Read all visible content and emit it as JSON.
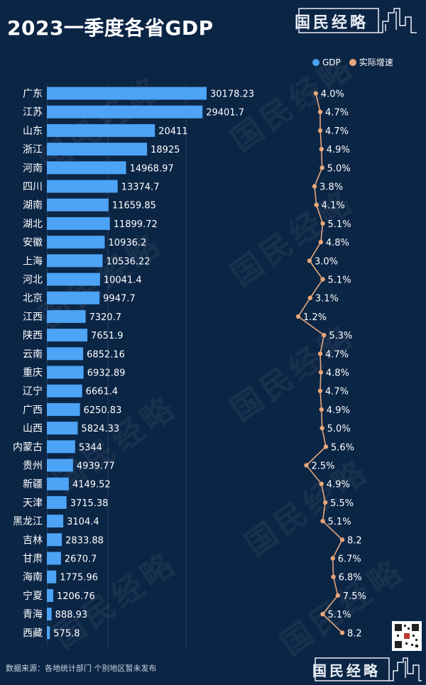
{
  "title": "2023一季度各省GDP",
  "brand": "国民经略",
  "source_note": "数据来源：各地统计部门 个别地区暂未发布",
  "colors": {
    "background": "#0b2545",
    "bar": "#4da3f5",
    "line": "#e8a77a",
    "text": "#ffffff"
  },
  "chart_data": {
    "type": "bar",
    "categories": [
      "广东",
      "江苏",
      "山东",
      "浙江",
      "河南",
      "四川",
      "湖南",
      "湖北",
      "安徽",
      "上海",
      "河北",
      "北京",
      "江西",
      "陕西",
      "云南",
      "重庆",
      "辽宁",
      "广西",
      "山西",
      "内蒙古",
      "贵州",
      "新疆",
      "天津",
      "黑龙江",
      "吉林",
      "甘肃",
      "海南",
      "宁夏",
      "青海",
      "西藏"
    ],
    "series": [
      {
        "name": "GDP",
        "type": "bar",
        "values": [
          30178.23,
          29401.7,
          20411,
          18925,
          14968.97,
          13374.7,
          11659.85,
          11899.72,
          10936.2,
          10536.22,
          10041.4,
          9947.7,
          7320.7,
          7651.9,
          6852.16,
          6932.89,
          6661.4,
          6250.83,
          5824.33,
          5344,
          4939.77,
          4149.52,
          3715.38,
          3104.4,
          2833.88,
          2670.7,
          1775.96,
          1206.76,
          888.93,
          575.8
        ],
        "labels": [
          "30178.23",
          "29401.7",
          "20411",
          "18925",
          "14968.97",
          "13374.7",
          "11659.85",
          "11899.72",
          "10936.2",
          "10536.22",
          "10041.4",
          "9947.7",
          "7320.7",
          "7651.9",
          "6852.16",
          "6932.89",
          "6661.4",
          "6250.83",
          "5824.33",
          "5344",
          "4939.77",
          "4149.52",
          "3715.38",
          "3104.4",
          "2833.88",
          "2670.7",
          "1775.96",
          "1206.76",
          "888.93",
          "575.8"
        ]
      },
      {
        "name": "实际增速",
        "type": "line",
        "values": [
          4.0,
          4.7,
          4.7,
          4.9,
          5.0,
          3.8,
          4.1,
          5.1,
          4.8,
          3.0,
          5.1,
          3.1,
          1.2,
          5.3,
          4.7,
          4.8,
          4.7,
          4.9,
          5.0,
          5.6,
          2.5,
          4.9,
          5.5,
          5.1,
          8.2,
          6.7,
          6.8,
          7.5,
          5.1,
          8.2
        ],
        "labels": [
          "4.0%",
          "4.7%",
          "4.7%",
          "4.9%",
          "5.0%",
          "3.8%",
          "4.1%",
          "5.1%",
          "4.8%",
          "3.0%",
          "5.1%",
          "3.1%",
          "1.2%",
          "5.3%",
          "4.7%",
          "4.8%",
          "4.7%",
          "4.9%",
          "5.0%",
          "5.6%",
          "2.5%",
          "4.9%",
          "5.5%",
          "5.1%",
          "8.2",
          "6.7%",
          "6.8%",
          "7.5%",
          "5.1%",
          "8.2"
        ]
      }
    ],
    "legend": "top-right",
    "grid": true
  }
}
